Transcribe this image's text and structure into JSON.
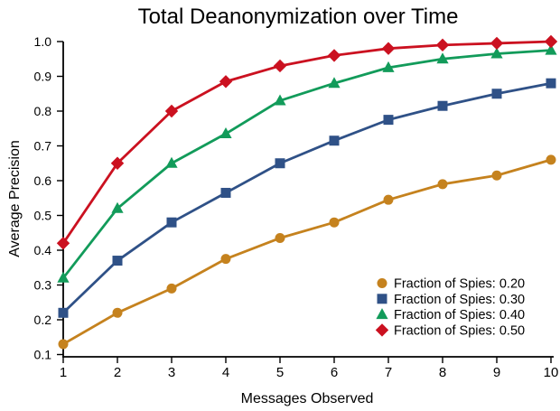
{
  "figure": {
    "background": "#ffffff",
    "axis_color": "#000000",
    "text_color": "#000000"
  },
  "chart_data": {
    "type": "line",
    "title": "Total Deanonymization over Time",
    "xlabel": "Messages Observed",
    "ylabel": "Average Precision",
    "grid": false,
    "legend_position": "lower right",
    "xlim": [
      1,
      10
    ],
    "ylim": [
      0.1,
      1.0
    ],
    "xticks": [
      "1",
      "2",
      "3",
      "4",
      "5",
      "6",
      "7",
      "8",
      "9",
      "10"
    ],
    "yticks": [
      "0.1",
      "0.2",
      "0.3",
      "0.4",
      "0.5",
      "0.6",
      "0.7",
      "0.8",
      "0.9",
      "1.0"
    ],
    "x": [
      1,
      2,
      3,
      4,
      5,
      6,
      7,
      8,
      9,
      10
    ],
    "series": [
      {
        "name": "Fraction of Spies: 0.20",
        "marker": "circle",
        "color": "#C5821E",
        "values": [
          0.13,
          0.22,
          0.29,
          0.375,
          0.435,
          0.48,
          0.545,
          0.59,
          0.615,
          0.66
        ]
      },
      {
        "name": "Fraction of Spies: 0.30",
        "marker": "square",
        "color": "#2F5187",
        "values": [
          0.22,
          0.37,
          0.48,
          0.565,
          0.65,
          0.715,
          0.775,
          0.815,
          0.85,
          0.88
        ]
      },
      {
        "name": "Fraction of Spies: 0.40",
        "marker": "triangle",
        "color": "#129B5A",
        "values": [
          0.32,
          0.52,
          0.65,
          0.735,
          0.83,
          0.88,
          0.925,
          0.95,
          0.965,
          0.975
        ]
      },
      {
        "name": "Fraction of Spies: 0.50",
        "marker": "diamond",
        "color": "#CB1120",
        "values": [
          0.42,
          0.65,
          0.8,
          0.885,
          0.93,
          0.96,
          0.98,
          0.99,
          0.995,
          1.0
        ]
      }
    ]
  }
}
